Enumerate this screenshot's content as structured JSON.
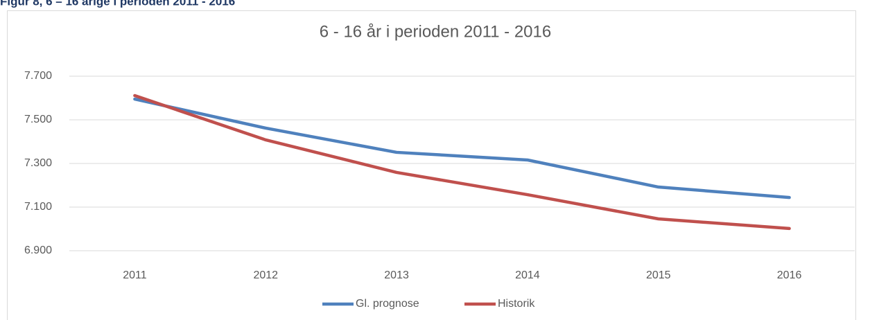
{
  "heading": "Figur 8, 6 – 16 årige i perioden 2011 - 2016",
  "chart_data": {
    "type": "line",
    "title": "6 - 16 år i perioden 2011 - 2016",
    "categories": [
      "2011",
      "2012",
      "2013",
      "2014",
      "2015",
      "2016"
    ],
    "series": [
      {
        "name": "Gl. prognose",
        "color": "#4f81bd",
        "values": [
          7595,
          7462,
          7351,
          7316,
          7192,
          7144
        ]
      },
      {
        "name": "Historik",
        "color": "#c0504d",
        "values": [
          7611,
          7408,
          7259,
          7157,
          7046,
          7002
        ]
      }
    ],
    "ylim": [
      6900,
      7700
    ],
    "yticks": [
      {
        "value": 6900,
        "label": "6.900"
      },
      {
        "value": 7100,
        "label": "7.100"
      },
      {
        "value": 7300,
        "label": "7.300"
      },
      {
        "value": 7500,
        "label": "7.500"
      },
      {
        "value": 7700,
        "label": "7.700"
      }
    ],
    "grid": true,
    "legend": "bottom"
  }
}
